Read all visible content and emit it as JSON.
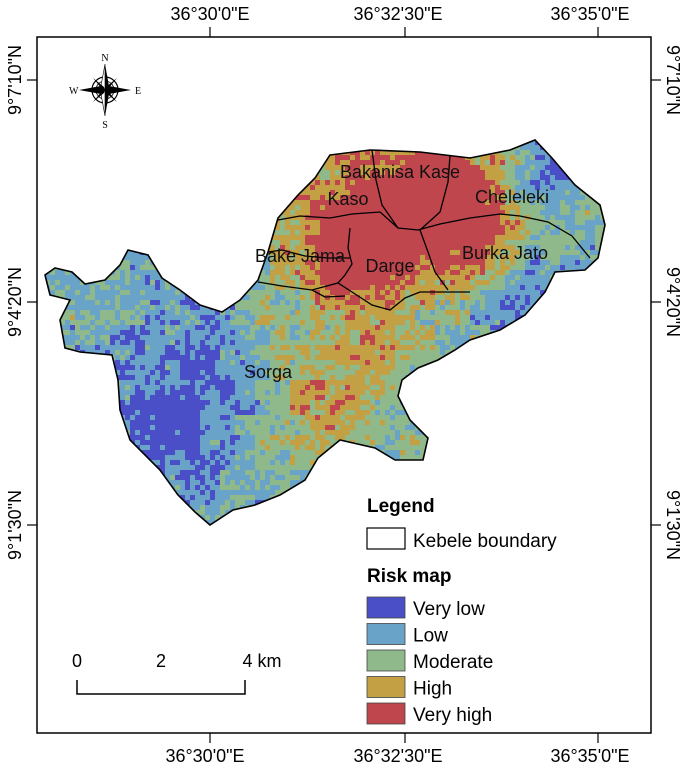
{
  "map": {
    "top_longitudes": [
      "36°30'0\"E",
      "36°32'30\"E",
      "36°35'0\"E"
    ],
    "bottom_longitudes": [
      "36°30'0\"E",
      "36°32'30\"E",
      "36°35'0\"E"
    ],
    "left_latitudes": [
      "9°7'10\"N",
      "9°4'20\"N",
      "9°1'30\"N"
    ],
    "right_latitudes": [
      "9°7'10\"N",
      "9°4'20\"N",
      "9°1'30\"N"
    ],
    "kebeles": [
      "Bakanisa Kase",
      "Kaso",
      "Cheleleki",
      "Bake Jama",
      "Darge",
      "Burka Jato",
      "Sorga"
    ],
    "compass": {
      "n": "N",
      "s": "S",
      "e": "E",
      "w": "W"
    }
  },
  "legend": {
    "title": "Legend",
    "boundary_label": "Kebele boundary",
    "risk_title": "Risk map",
    "classes": [
      {
        "label": "Very low",
        "color": "#4b4fc7"
      },
      {
        "label": "Low",
        "color": "#6aa3c8"
      },
      {
        "label": "Moderate",
        "color": "#8fb98a"
      },
      {
        "label": "High",
        "color": "#c4a044"
      },
      {
        "label": "Very high",
        "color": "#c0464e"
      }
    ]
  },
  "scale_bar": {
    "labels": [
      "0",
      "2",
      "4 km"
    ]
  }
}
